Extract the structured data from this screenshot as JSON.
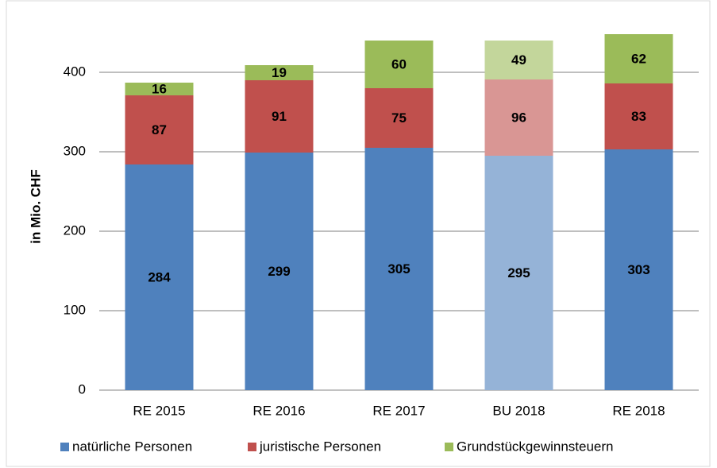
{
  "chart_data": {
    "type": "stacked_bar",
    "ylabel": "in Mio. CHF",
    "categories": [
      "RE 2015",
      "RE 2016",
      "RE 2017",
      "BU 2018",
      "RE 2018"
    ],
    "series": [
      {
        "name": "natürliche Personen",
        "color": "#4f81bd",
        "colors": [
          "#4f81bd",
          "#4f81bd",
          "#4f81bd",
          "#95b3d7",
          "#4f81bd"
        ],
        "values": [
          284,
          299,
          305,
          295,
          303
        ]
      },
      {
        "name": "juristische Personen",
        "color": "#c0504d",
        "colors": [
          "#c0504d",
          "#c0504d",
          "#c0504d",
          "#d99694",
          "#c0504d"
        ],
        "values": [
          87,
          91,
          75,
          96,
          83
        ]
      },
      {
        "name": "Grundstückgewinnsteuern",
        "color": "#9bbb59",
        "colors": [
          "#9bbb59",
          "#9bbb59",
          "#9bbb59",
          "#c3d69b",
          "#9bbb59"
        ],
        "values": [
          16,
          19,
          60,
          49,
          62
        ]
      }
    ],
    "ylim": [
      0,
      450
    ],
    "yticks": [
      0,
      100,
      200,
      300,
      400
    ],
    "grid": true,
    "legend": "bottom"
  }
}
